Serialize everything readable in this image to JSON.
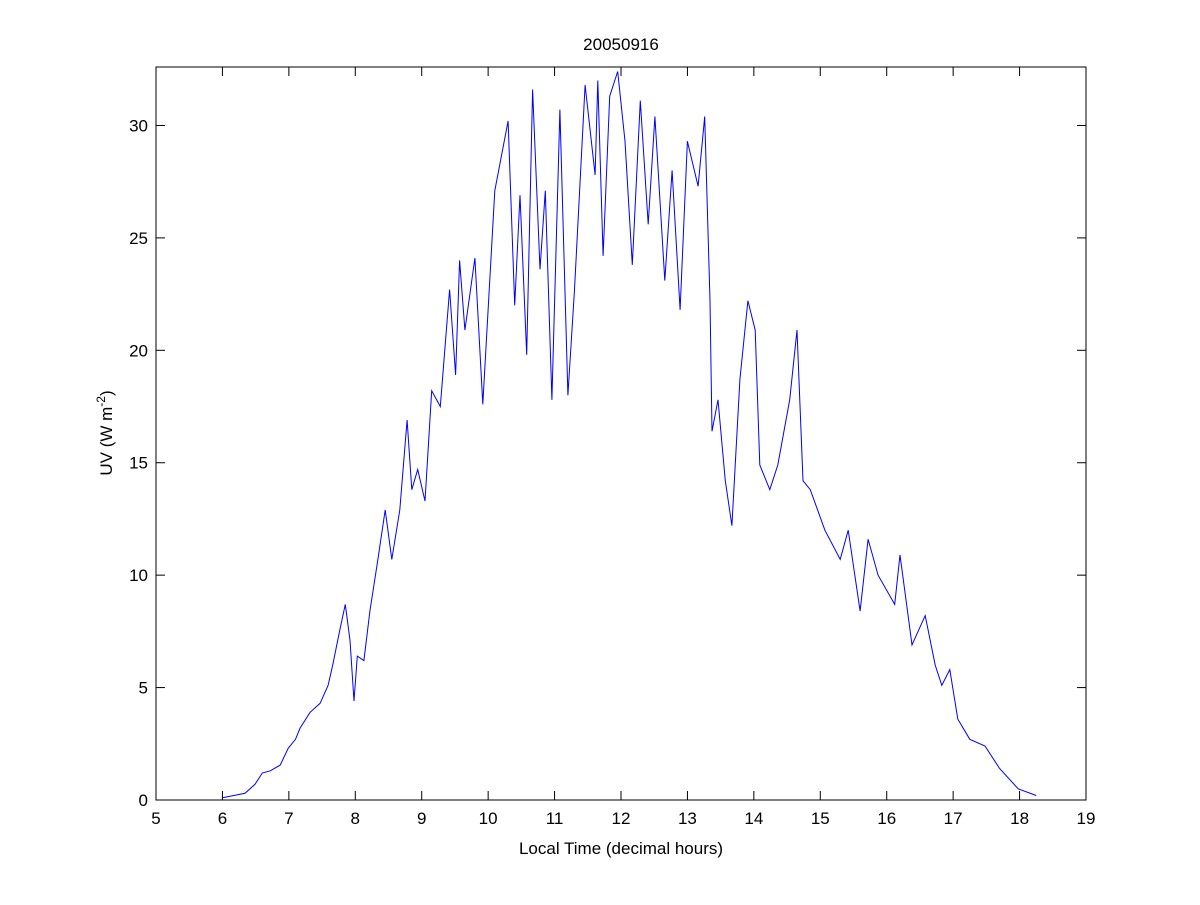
{
  "chart_data": {
    "type": "line",
    "title": "20050916",
    "xlabel": "Local Time (decimal hours)",
    "ylabel_main": "UV (W m",
    "ylabel_sup": "-2",
    "ylabel_close": ")",
    "xlim": [
      5,
      19
    ],
    "ylim": [
      0,
      32.6
    ],
    "xticks": [
      5,
      6,
      7,
      8,
      9,
      10,
      11,
      12,
      13,
      14,
      15,
      16,
      17,
      18,
      19
    ],
    "yticks": [
      0,
      5,
      10,
      15,
      20,
      25,
      30
    ],
    "grid": false,
    "line_color": "#0000ff",
    "series": [
      {
        "name": "UV",
        "x": [
          6.0,
          6.34,
          6.49,
          6.6,
          6.72,
          6.87,
          6.99,
          7.1,
          7.17,
          7.32,
          7.47,
          7.59,
          7.66,
          7.77,
          7.85,
          7.92,
          7.98,
          8.03,
          8.13,
          8.22,
          8.34,
          8.45,
          8.55,
          8.67,
          8.78,
          8.85,
          8.94,
          9.05,
          9.15,
          9.28,
          9.42,
          9.51,
          9.57,
          9.65,
          9.8,
          9.92,
          10.1,
          10.3,
          10.4,
          10.48,
          10.58,
          10.67,
          10.78,
          10.86,
          10.96,
          11.08,
          11.2,
          11.3,
          11.46,
          11.61,
          11.65,
          11.73,
          11.83,
          11.95,
          12.06,
          12.17,
          12.29,
          12.41,
          12.51,
          12.66,
          12.77,
          12.89,
          13.0,
          13.16,
          13.26,
          13.34,
          13.37,
          13.46,
          13.57,
          13.67,
          13.79,
          13.91,
          14.02,
          14.09,
          14.24,
          14.36,
          14.54,
          14.65,
          14.74,
          14.85,
          15.07,
          15.3,
          15.42,
          15.6,
          15.72,
          15.87,
          16.12,
          16.2,
          16.38,
          16.58,
          16.73,
          16.83,
          16.95,
          17.07,
          17.25,
          17.48,
          17.7,
          17.98,
          18.25
        ],
        "y": [
          0.1,
          0.3,
          0.7,
          1.2,
          1.3,
          1.55,
          2.3,
          2.7,
          3.2,
          3.9,
          4.3,
          5.1,
          6.0,
          7.6,
          8.7,
          7.1,
          4.4,
          6.4,
          6.2,
          8.4,
          10.7,
          12.9,
          10.7,
          12.9,
          16.9,
          13.8,
          14.7,
          13.3,
          18.2,
          17.5,
          22.7,
          18.9,
          24.0,
          20.9,
          24.1,
          17.6,
          27.1,
          30.2,
          22.0,
          26.9,
          19.8,
          31.6,
          23.6,
          27.1,
          17.8,
          30.7,
          18.0,
          22.7,
          31.8,
          27.8,
          32.0,
          24.2,
          31.3,
          32.4,
          29.3,
          23.8,
          31.1,
          25.6,
          30.4,
          23.1,
          28.0,
          21.8,
          29.3,
          27.3,
          30.4,
          22.2,
          16.4,
          17.8,
          14.2,
          12.2,
          18.7,
          22.2,
          20.9,
          14.9,
          13.8,
          14.9,
          17.8,
          20.9,
          14.2,
          13.8,
          12.0,
          10.7,
          12.0,
          8.4,
          11.6,
          10.0,
          8.7,
          10.9,
          6.9,
          8.2,
          6.0,
          5.1,
          5.8,
          3.6,
          2.7,
          2.4,
          1.4,
          0.5,
          0.2
        ]
      }
    ]
  }
}
